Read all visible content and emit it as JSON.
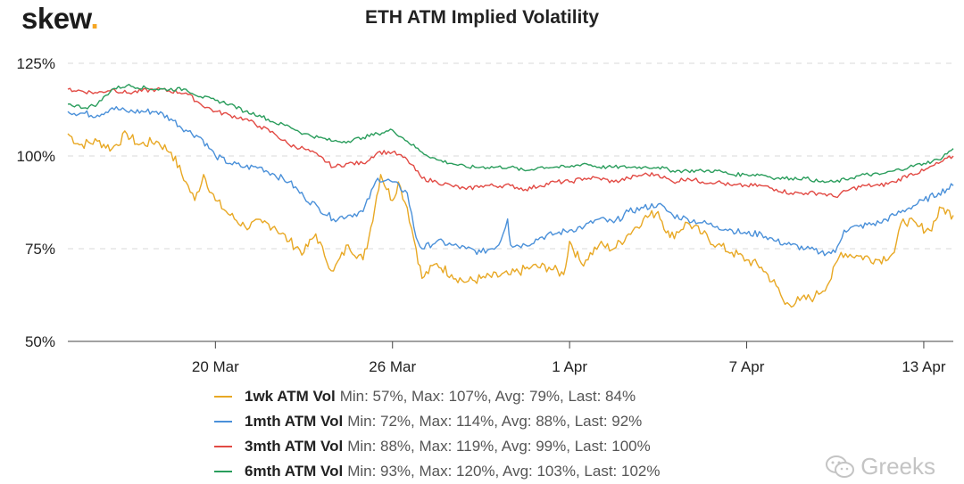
{
  "branding": {
    "logo_text": "skew",
    "logo_dot": "."
  },
  "watermark": {
    "text": "Greeks",
    "icon": "wechat-icon"
  },
  "chart_data": {
    "type": "line",
    "title": "ETH ATM Implied Volatility",
    "xlabel": "",
    "ylabel": "",
    "ylim": [
      50,
      125
    ],
    "y_ticks": [
      "125%",
      "100%",
      "75%",
      "50%"
    ],
    "x_range_days": [
      0,
      30
    ],
    "x_ticks": [
      {
        "label": "20 Mar",
        "day": 5
      },
      {
        "label": "26 Mar",
        "day": 11
      },
      {
        "label": "1 Apr",
        "day": 17
      },
      {
        "label": "7 Apr",
        "day": 23
      },
      {
        "label": "13 Apr",
        "day": 29
      }
    ],
    "grid": true,
    "legend_position": "bottom",
    "series": [
      {
        "name": "1wk ATM Vol",
        "stats": "Min: 57%, Max: 107%, Avg: 79%, Last: 84%",
        "color": "#e8a824",
        "points": [
          [
            0,
            106
          ],
          [
            0.4,
            103
          ],
          [
            1,
            104
          ],
          [
            1.5,
            102
          ],
          [
            2,
            106
          ],
          [
            2.4,
            103
          ],
          [
            3,
            104
          ],
          [
            3.5,
            101
          ],
          [
            4,
            93
          ],
          [
            4.3,
            88
          ],
          [
            4.6,
            95
          ],
          [
            5,
            88
          ],
          [
            5.5,
            84
          ],
          [
            6,
            81
          ],
          [
            6.6,
            82
          ],
          [
            7,
            81
          ],
          [
            7.5,
            77
          ],
          [
            8,
            74
          ],
          [
            8.4,
            79
          ],
          [
            8.7,
            73
          ],
          [
            9,
            69
          ],
          [
            9.5,
            76
          ],
          [
            10,
            72
          ],
          [
            10.2,
            78
          ],
          [
            10.6,
            95
          ],
          [
            11,
            88
          ],
          [
            11.2,
            93
          ],
          [
            11.5,
            86
          ],
          [
            11.8,
            75
          ],
          [
            12,
            67
          ],
          [
            12.5,
            71
          ],
          [
            13,
            68
          ],
          [
            13.5,
            66
          ],
          [
            14,
            67
          ],
          [
            15,
            68
          ],
          [
            15.7,
            70
          ],
          [
            16.3,
            70
          ],
          [
            16.8,
            68
          ],
          [
            17,
            77
          ],
          [
            17.4,
            71
          ],
          [
            18,
            76
          ],
          [
            18.5,
            75
          ],
          [
            19,
            79
          ],
          [
            19.5,
            83
          ],
          [
            20,
            85
          ],
          [
            20.4,
            78
          ],
          [
            21,
            82
          ],
          [
            21.5,
            79
          ],
          [
            22,
            76
          ],
          [
            22.5,
            74
          ],
          [
            23,
            72
          ],
          [
            23.5,
            70
          ],
          [
            24,
            65
          ],
          [
            24.3,
            60
          ],
          [
            24.8,
            61
          ],
          [
            25.3,
            62
          ],
          [
            25.8,
            66
          ],
          [
            26.2,
            74
          ],
          [
            26.8,
            73
          ],
          [
            27.5,
            72
          ],
          [
            28,
            74
          ],
          [
            28.3,
            83
          ],
          [
            28.8,
            81
          ],
          [
            29.2,
            80
          ],
          [
            29.6,
            86
          ],
          [
            30,
            84
          ]
        ]
      },
      {
        "name": "1mth ATM Vol",
        "stats": "Min: 72%, Max: 114%, Avg: 88%, Last: 92%",
        "color": "#4a90d9",
        "points": [
          [
            0,
            112
          ],
          [
            1,
            111
          ],
          [
            1.5,
            113
          ],
          [
            2,
            112
          ],
          [
            3,
            112
          ],
          [
            3.5,
            110
          ],
          [
            4,
            107
          ],
          [
            4.5,
            105
          ],
          [
            5,
            100
          ],
          [
            5.5,
            98
          ],
          [
            6,
            97
          ],
          [
            6.5,
            97
          ],
          [
            7,
            95
          ],
          [
            7.5,
            93
          ],
          [
            8,
            89
          ],
          [
            8.5,
            86
          ],
          [
            9,
            83
          ],
          [
            9.5,
            84
          ],
          [
            10,
            85
          ],
          [
            10.5,
            94
          ],
          [
            11,
            93
          ],
          [
            11.5,
            90
          ],
          [
            11.8,
            78
          ],
          [
            12,
            75
          ],
          [
            12.5,
            77
          ],
          [
            13,
            76
          ],
          [
            13.5,
            75
          ],
          [
            14,
            74
          ],
          [
            14.6,
            76
          ],
          [
            14.9,
            83
          ],
          [
            15,
            76
          ],
          [
            15.5,
            76
          ],
          [
            16,
            78
          ],
          [
            16.5,
            79
          ],
          [
            17,
            80
          ],
          [
            17.5,
            81
          ],
          [
            18,
            83
          ],
          [
            18.5,
            82
          ],
          [
            19,
            85
          ],
          [
            19.5,
            86
          ],
          [
            20,
            87
          ],
          [
            20.5,
            84
          ],
          [
            21,
            83
          ],
          [
            21.5,
            82
          ],
          [
            22,
            81
          ],
          [
            22.5,
            80
          ],
          [
            23,
            79
          ],
          [
            23.5,
            79
          ],
          [
            24,
            77
          ],
          [
            24.5,
            76
          ],
          [
            25,
            75
          ],
          [
            25.5,
            74
          ],
          [
            26,
            74
          ],
          [
            26.3,
            80
          ],
          [
            26.8,
            81
          ],
          [
            27.5,
            82
          ],
          [
            28,
            84
          ],
          [
            28.5,
            86
          ],
          [
            29,
            88
          ],
          [
            29.5,
            90
          ],
          [
            30,
            92
          ]
        ]
      },
      {
        "name": "3mth ATM Vol",
        "stats": "Min: 88%, Max: 119%, Avg: 99%, Last: 100%",
        "color": "#e24a44",
        "points": [
          [
            0,
            118
          ],
          [
            1,
            117
          ],
          [
            1.5,
            118
          ],
          [
            2,
            117
          ],
          [
            3,
            118
          ],
          [
            4,
            117
          ],
          [
            4.5,
            114
          ],
          [
            5,
            112
          ],
          [
            5.5,
            111
          ],
          [
            6,
            110
          ],
          [
            6.5,
            108
          ],
          [
            7,
            106
          ],
          [
            7.5,
            103
          ],
          [
            8,
            102
          ],
          [
            8.5,
            100
          ],
          [
            9,
            97
          ],
          [
            9.5,
            98
          ],
          [
            10,
            98
          ],
          [
            10.5,
            101
          ],
          [
            11,
            101
          ],
          [
            11.5,
            99
          ],
          [
            12,
            94
          ],
          [
            12.5,
            93
          ],
          [
            13,
            92
          ],
          [
            13.5,
            91
          ],
          [
            14,
            92
          ],
          [
            15,
            92
          ],
          [
            15.5,
            91
          ],
          [
            16,
            92
          ],
          [
            16.5,
            93
          ],
          [
            17,
            93
          ],
          [
            17.5,
            94
          ],
          [
            18,
            94
          ],
          [
            18.5,
            93
          ],
          [
            19,
            94
          ],
          [
            19.5,
            95
          ],
          [
            20,
            95
          ],
          [
            20.5,
            93
          ],
          [
            21,
            94
          ],
          [
            21.5,
            93
          ],
          [
            22,
            93
          ],
          [
            22.5,
            92
          ],
          [
            23,
            92
          ],
          [
            23.5,
            92
          ],
          [
            24,
            91
          ],
          [
            24.5,
            90
          ],
          [
            25,
            90
          ],
          [
            25.5,
            90
          ],
          [
            26,
            89
          ],
          [
            26.5,
            91
          ],
          [
            27,
            92
          ],
          [
            27.5,
            92
          ],
          [
            28,
            93
          ],
          [
            28.5,
            95
          ],
          [
            29,
            96
          ],
          [
            29.5,
            98
          ],
          [
            30,
            100
          ]
        ]
      },
      {
        "name": "6mth ATM Vol",
        "stats": "Min: 93%, Max: 120%, Avg: 103%, Last: 102%",
        "color": "#2a9d5c",
        "points": [
          [
            0,
            114
          ],
          [
            0.6,
            113
          ],
          [
            1,
            114
          ],
          [
            1.5,
            118
          ],
          [
            2,
            119
          ],
          [
            3,
            118
          ],
          [
            4,
            118
          ],
          [
            4.5,
            116
          ],
          [
            5,
            115
          ],
          [
            5.5,
            114
          ],
          [
            6,
            112
          ],
          [
            6.5,
            111
          ],
          [
            7,
            109
          ],
          [
            7.5,
            108
          ],
          [
            8,
            106
          ],
          [
            8.5,
            105
          ],
          [
            9,
            104
          ],
          [
            9.5,
            104
          ],
          [
            10,
            105
          ],
          [
            10.5,
            106
          ],
          [
            11,
            107
          ],
          [
            11.5,
            104
          ],
          [
            12,
            101
          ],
          [
            12.5,
            99
          ],
          [
            13,
            98
          ],
          [
            13.5,
            97
          ],
          [
            14,
            97
          ],
          [
            15,
            97
          ],
          [
            15.5,
            96
          ],
          [
            16,
            97
          ],
          [
            16.5,
            97
          ],
          [
            17,
            97
          ],
          [
            17.5,
            98
          ],
          [
            18,
            97
          ],
          [
            18.5,
            97
          ],
          [
            19,
            97
          ],
          [
            19.5,
            97
          ],
          [
            20,
            97
          ],
          [
            20.5,
            96
          ],
          [
            21,
            96
          ],
          [
            21.5,
            96
          ],
          [
            22,
            96
          ],
          [
            22.5,
            95
          ],
          [
            23,
            95
          ],
          [
            23.5,
            95
          ],
          [
            24,
            94
          ],
          [
            24.5,
            94
          ],
          [
            25,
            94
          ],
          [
            25.5,
            93
          ],
          [
            26,
            93
          ],
          [
            26.5,
            94
          ],
          [
            27,
            95
          ],
          [
            27.5,
            95
          ],
          [
            28,
            96
          ],
          [
            28.5,
            97
          ],
          [
            29,
            98
          ],
          [
            29.5,
            99
          ],
          [
            30,
            102
          ]
        ]
      }
    ]
  }
}
